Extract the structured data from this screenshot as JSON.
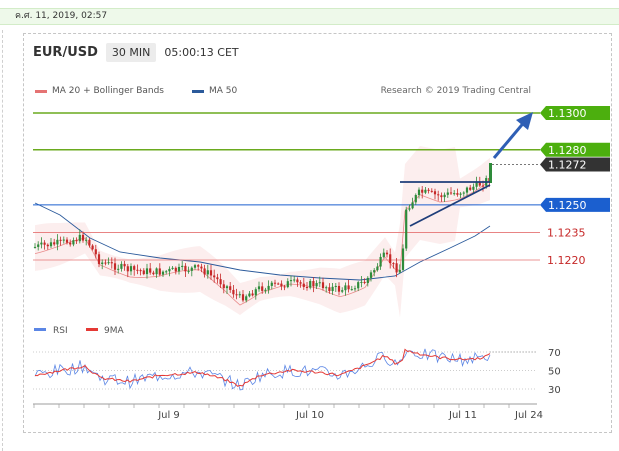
{
  "date_label": "ค.ศ. 11, 2019, 02:57",
  "header": {
    "symbol": "EUR/USD",
    "timeframe": "30 MIN",
    "clock": "05:00:13 CET"
  },
  "credit": "Research © 2019 Trading Central",
  "colors": {
    "up": "#2e8b3a",
    "down": "#c62828",
    "ma50": "#2b5a9b",
    "ma20": "#e57373",
    "green_level": "#6aaa1e",
    "blue_level": "#1b5fcf",
    "red_level": "#e57373",
    "price": "#333333",
    "rsi": "#5b86e5",
    "rsi_ma": "#e53935"
  },
  "chart_data": {
    "type": "candlestick",
    "legend": [
      {
        "name": "MA 20 + Bollinger Bands",
        "color": "#e57373"
      },
      {
        "name": "MA 50",
        "color": "#2b5a9b"
      }
    ],
    "levels": [
      {
        "label": "1.1300",
        "value": 1.13,
        "kind": "resistance",
        "style": "green"
      },
      {
        "label": "1.1280",
        "value": 1.128,
        "kind": "resistance",
        "style": "green"
      },
      {
        "label": "1.1272",
        "value": 1.1272,
        "kind": "last-price",
        "style": "dark"
      },
      {
        "label": "1.1250",
        "value": 1.125,
        "kind": "pivot",
        "style": "blue"
      },
      {
        "label": "1.1235",
        "value": 1.1235,
        "kind": "support",
        "style": "red"
      },
      {
        "label": "1.1220",
        "value": 1.122,
        "kind": "support",
        "style": "red"
      }
    ],
    "price_range": [
      1.119,
      1.131
    ],
    "x_ticks": [
      "Jul 9",
      "Jul 10",
      "Jul 11",
      "Jul 24"
    ],
    "rsi": {
      "legend": [
        {
          "name": "RSI",
          "color": "#5b86e5"
        },
        {
          "name": "9MA",
          "color": "#e53935"
        }
      ],
      "ticks": [
        70,
        50,
        30
      ],
      "range": [
        20,
        80
      ]
    }
  }
}
